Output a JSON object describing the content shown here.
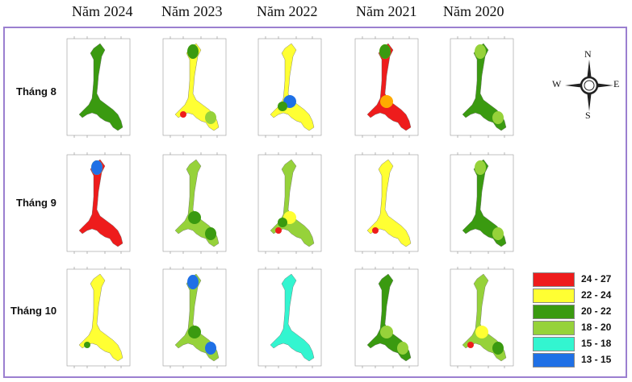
{
  "years": [
    "Năm 2024",
    "Năm 2023",
    "Năm 2022",
    "Năm 2021",
    "Năm 2020"
  ],
  "months": [
    "Tháng 8",
    "Tháng 9",
    "Tháng 10"
  ],
  "compass": {
    "north": "N",
    "south": "S",
    "east": "E",
    "west": "W"
  },
  "legend": [
    {
      "label": "24 - 27",
      "color": "#ee1c1c"
    },
    {
      "label": "22 - 24",
      "color": "#ffff33"
    },
    {
      "label": "20 - 22",
      "color": "#3a9a10"
    },
    {
      "label": "18 - 20",
      "color": "#96d23a"
    },
    {
      "label": "15 - 18",
      "color": "#33f5d0"
    },
    {
      "label": "13 - 15",
      "color": "#1f70e6"
    }
  ],
  "maps": [
    [
      {
        "base": "#3a9a10",
        "patches": []
      },
      {
        "base": "#ffff33",
        "patches": [
          {
            "color": "#3a9a10",
            "spot": "north"
          },
          {
            "color": "#96d23a",
            "spot": "east-arm"
          },
          {
            "color": "#ee1c1c",
            "spot": "south"
          }
        ]
      },
      {
        "base": "#ffff33",
        "patches": [
          {
            "color": "#1f70e6",
            "spot": "center"
          },
          {
            "color": "#3a9a10",
            "spot": "center-left"
          }
        ]
      },
      {
        "base": "#ee1c1c",
        "patches": [
          {
            "color": "#ffaa00",
            "spot": "center"
          },
          {
            "color": "#ffff33",
            "spot": "north"
          },
          {
            "color": "#3a9a10",
            "spot": "north"
          }
        ]
      },
      {
        "base": "#3a9a10",
        "patches": [
          {
            "color": "#96d23a",
            "spot": "north"
          },
          {
            "color": "#96d23a",
            "spot": "east-arm"
          }
        ]
      }
    ],
    [
      {
        "base": "#ee1c1c",
        "patches": [
          {
            "color": "#3a9a10",
            "spot": "north"
          },
          {
            "color": "#ffff33",
            "spot": "north"
          },
          {
            "color": "#1f70e6",
            "spot": "north"
          }
        ]
      },
      {
        "base": "#96d23a",
        "patches": [
          {
            "color": "#3a9a10",
            "spot": "east-arm"
          },
          {
            "color": "#3a9a10",
            "spot": "center"
          }
        ]
      },
      {
        "base": "#96d23a",
        "patches": [
          {
            "color": "#ffff33",
            "spot": "center"
          },
          {
            "color": "#3a9a10",
            "spot": "center-left"
          },
          {
            "color": "#ee1c1c",
            "spot": "south"
          }
        ]
      },
      {
        "base": "#ffff33",
        "patches": [
          {
            "color": "#ee1c1c",
            "spot": "south"
          }
        ]
      },
      {
        "base": "#3a9a10",
        "patches": [
          {
            "color": "#96d23a",
            "spot": "north"
          },
          {
            "color": "#96d23a",
            "spot": "east-arm"
          }
        ]
      }
    ],
    [
      {
        "base": "#ffff33",
        "patches": [
          {
            "color": "#3a9a10",
            "spot": "south"
          }
        ]
      },
      {
        "base": "#96d23a",
        "patches": [
          {
            "color": "#1f70e6",
            "spot": "north"
          },
          {
            "color": "#1f70e6",
            "spot": "east-arm"
          },
          {
            "color": "#3a9a10",
            "spot": "center"
          }
        ]
      },
      {
        "base": "#33f5d0",
        "patches": []
      },
      {
        "base": "#3a9a10",
        "patches": [
          {
            "color": "#96d23a",
            "spot": "center"
          },
          {
            "color": "#96d23a",
            "spot": "east-arm"
          }
        ]
      },
      {
        "base": "#96d23a",
        "patches": [
          {
            "color": "#3a9a10",
            "spot": "east-arm"
          },
          {
            "color": "#ee1c1c",
            "spot": "south"
          },
          {
            "color": "#ffff33",
            "spot": "center"
          }
        ]
      }
    ]
  ]
}
